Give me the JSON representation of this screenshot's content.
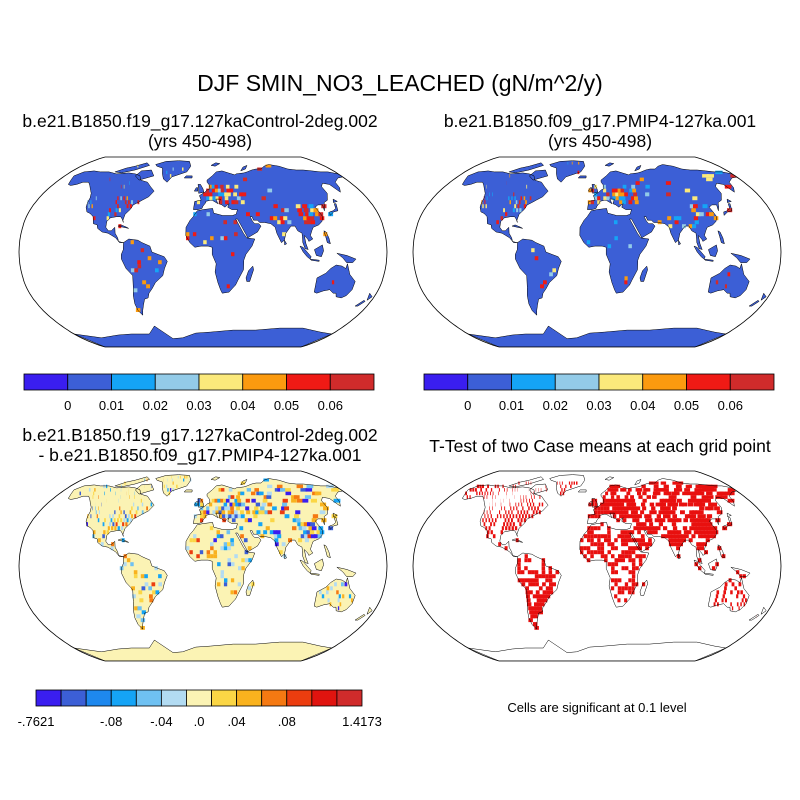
{
  "title": "DJF SMIN_NO3_LEACHED (gN/m^2/y)",
  "panels": [
    {
      "id": "control",
      "title_line1": "b.e21.B1850.f19_g17.127kaControl-2deg.002",
      "title_line2": "(yrs 450-498)"
    },
    {
      "id": "pmip4",
      "title_line1": "b.e21.B1850.f09_g17.PMIP4-127ka.001",
      "title_line2": "(yrs 450-498)"
    },
    {
      "id": "difference",
      "title_line1": "b.e21.B1850.f19_g17.127kaControl-2deg.002",
      "title_line2": "- b.e21.B1850.f09_g17.PMIP4-127ka.001"
    },
    {
      "id": "ttest",
      "title_line1": "T-Test of two Case means at each grid point"
    }
  ],
  "colorbars": {
    "field": {
      "colors": [
        "#3a1ef0",
        "#3c5fd6",
        "#15a4f6",
        "#93cbe8",
        "#fbe97b",
        "#fb9a0f",
        "#ef1a15",
        "#d02b2b"
      ],
      "labels": [
        "0",
        "0.01",
        "0.02",
        "0.03",
        "0.04",
        "0.05",
        "0.06"
      ]
    },
    "difference": {
      "colors": [
        "#3a1ef0",
        "#3c5fd6",
        "#1e88ee",
        "#15a4f6",
        "#6fc1f2",
        "#b2dbf2",
        "#fbf3b4",
        "#fbd645",
        "#f9b21e",
        "#f57912",
        "#ec3d0f",
        "#e0140f",
        "#d02b2b"
      ],
      "labels": [
        "-.7621",
        "-.08",
        "-.04",
        ".0",
        ".04",
        ".08",
        "1.4173"
      ]
    }
  },
  "ttest_note": "Cells are significant at 0.1 level",
  "colors": {
    "ocean_background": "#ffffff",
    "control_land_base": "#3c5fd6",
    "difference_land_base": "#fbf3b4",
    "significance_cells": "#e8100f",
    "coastline": "#000000"
  }
}
